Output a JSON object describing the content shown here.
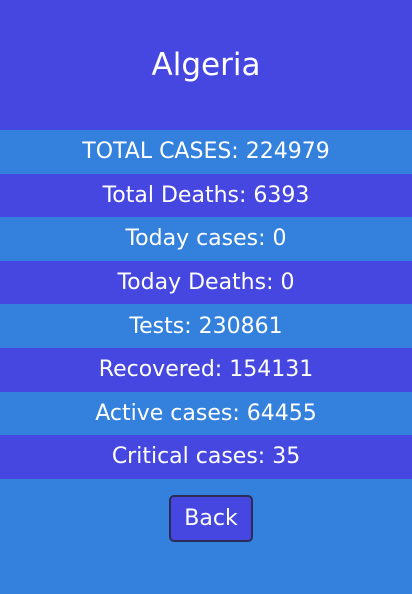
{
  "country": "Algeria",
  "stats": [
    {
      "label": "TOTAL CASES: 224979"
    },
    {
      "label": "Total Deaths: 6393"
    },
    {
      "label": "Today cases: 0"
    },
    {
      "label": "Today Deaths: 0"
    },
    {
      "label": "Tests: 230861"
    },
    {
      "label": "Recovered: 154131"
    },
    {
      "label": "Active cases: 64455"
    },
    {
      "label": "Critical cases: 35"
    }
  ],
  "back_label": "Back",
  "colors": {
    "header_bg": "#4647e0",
    "page_bg": "#3381dd",
    "row_dark": "#4647e0",
    "row_light": "#3381dd",
    "text": "#ffffff"
  }
}
